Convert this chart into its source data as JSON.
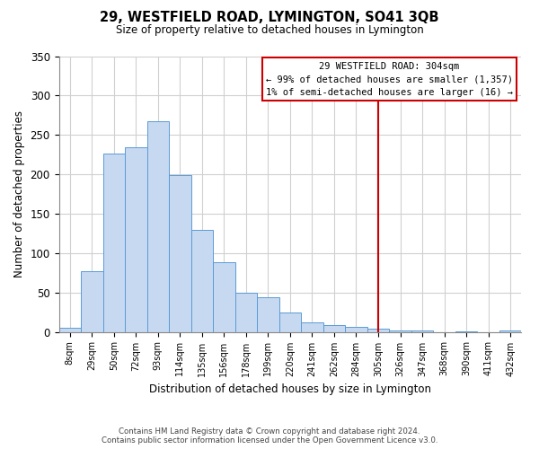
{
  "title": "29, WESTFIELD ROAD, LYMINGTON, SO41 3QB",
  "subtitle": "Size of property relative to detached houses in Lymington",
  "xlabel": "Distribution of detached houses by size in Lymington",
  "ylabel": "Number of detached properties",
  "bar_labels": [
    "8sqm",
    "29sqm",
    "50sqm",
    "72sqm",
    "93sqm",
    "114sqm",
    "135sqm",
    "156sqm",
    "178sqm",
    "199sqm",
    "220sqm",
    "241sqm",
    "262sqm",
    "284sqm",
    "305sqm",
    "326sqm",
    "347sqm",
    "368sqm",
    "390sqm",
    "411sqm",
    "432sqm"
  ],
  "bar_values": [
    5,
    77,
    226,
    234,
    267,
    199,
    130,
    88,
    50,
    44,
    25,
    12,
    9,
    6,
    4,
    2,
    2,
    0,
    1,
    0,
    2
  ],
  "bar_color": "#c6d9f1",
  "bar_edge_color": "#5b9bd5",
  "ylim": [
    0,
    350
  ],
  "yticks": [
    0,
    50,
    100,
    150,
    200,
    250,
    300,
    350
  ],
  "vline_label": "305sqm",
  "vline_color": "#cc0000",
  "annotation_title": "29 WESTFIELD ROAD: 304sqm",
  "annotation_line1": "← 99% of detached houses are smaller (1,357)",
  "annotation_line2": "1% of semi-detached houses are larger (16) →",
  "footer_line1": "Contains HM Land Registry data © Crown copyright and database right 2024.",
  "footer_line2": "Contains public sector information licensed under the Open Government Licence v3.0.",
  "background_color": "#ffffff",
  "grid_color": "#d0d0d0"
}
